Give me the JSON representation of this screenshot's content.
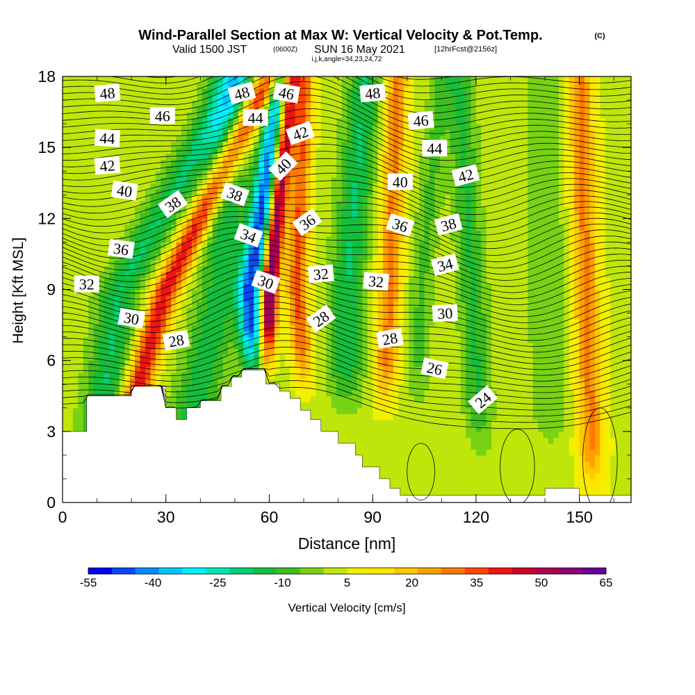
{
  "chart_data": {
    "type": "heatmap",
    "title": {
      "main": "Wind-Parallel Section at Max W: Vertical Velocity & Pot.Temp.",
      "main_tag": "(C)",
      "sub_a": "Valid 1500 JST",
      "sub_b": "(0600Z)",
      "sub_c": "SUN 16 May 2021",
      "sub_d": "[12hrFcst@2156z]",
      "sub_e": "i,j,k,angle=34,23,24,72"
    },
    "xlabel": "Distance [nm]",
    "ylabel": "Height [Kft MSL]",
    "xlim": [
      0,
      165
    ],
    "ylim": [
      0,
      18
    ],
    "x_ticks": [
      0,
      30,
      60,
      90,
      120,
      150
    ],
    "y_ticks": [
      0,
      3,
      6,
      9,
      12,
      15,
      18
    ],
    "colorbar": {
      "label": "Vertical Velocity [cm/s]",
      "tick_labels": [
        "-55",
        "-40",
        "-25",
        "-10",
        "5",
        "20",
        "35",
        "50",
        "65"
      ],
      "colors": [
        "#0000ee",
        "#0a46f5",
        "#008cff",
        "#00c8ff",
        "#00f0ff",
        "#00e6b4",
        "#00d278",
        "#14be3c",
        "#3cbe1e",
        "#78d214",
        "#bee60a",
        "#f0f000",
        "#ffe600",
        "#ffc800",
        "#ffa000",
        "#ff7800",
        "#ff4600",
        "#ee1414",
        "#cc0028",
        "#aa0050",
        "#8c0078",
        "#640096"
      ]
    },
    "bands": [
      {
        "name": "positive",
        "x": [
          12,
          30,
          60
        ],
        "t": 0.05,
        "w": 4,
        "amp": 40
      },
      {
        "name": "negative",
        "x": [
          8,
          16.5,
          51
        ],
        "t": 0.06,
        "w": 6,
        "amp": -20
      },
      {
        "name": "negative",
        "x": [
          32,
          46,
          49
        ],
        "t": 0.05,
        "w": 6.5,
        "amp": -18
      },
      {
        "name": "positive",
        "x": [
          58,
          60,
          66
        ],
        "t": 0.3,
        "w": 2.5,
        "amp": 60
      },
      {
        "name": "negative",
        "x": [
          56,
          54.5,
          64
        ],
        "t": 0.28,
        "w": 3.5,
        "amp": -50
      },
      {
        "name": "positive",
        "x": [
          73,
          68,
          70
        ],
        "t": 0.25,
        "w": 3,
        "amp": 30
      },
      {
        "name": "negative",
        "x": [
          82,
          82.5,
          88
        ],
        "t": 0.2,
        "w": 5,
        "amp": -20
      },
      {
        "name": "positive",
        "x": [
          92,
          95,
          97
        ],
        "t": 0.2,
        "w": 3.5,
        "amp": 25
      },
      {
        "name": "negative",
        "x": [
          102,
          104,
          110
        ],
        "t": 0.2,
        "w": 3.5,
        "amp": -10
      },
      {
        "name": "negative",
        "x": [
          122,
          119,
          115
        ],
        "t": 0.1,
        "w": 4,
        "amp": -15
      },
      {
        "name": "positive",
        "x": [
          154,
          152,
          150
        ],
        "t": 0.0,
        "w": 4,
        "amp": 25
      },
      {
        "name": "negative",
        "x": [
          142,
          141,
          140
        ],
        "t": 0.1,
        "w": 6,
        "amp": -8
      }
    ],
    "base_value": 3,
    "terrain": [
      [
        0,
        3.0
      ],
      [
        7,
        3.0
      ],
      [
        7,
        3.5
      ],
      [
        7,
        4.0
      ],
      [
        7,
        4.5
      ],
      [
        20,
        4.5
      ],
      [
        20,
        4.9
      ],
      [
        30,
        4.9
      ],
      [
        30,
        4.0
      ],
      [
        33,
        4.0
      ],
      [
        33,
        3.5
      ],
      [
        36,
        3.5
      ],
      [
        36,
        4.0
      ],
      [
        40,
        4.0
      ],
      [
        40,
        4.3
      ],
      [
        46,
        4.3
      ],
      [
        46,
        4.9
      ],
      [
        49,
        4.9
      ],
      [
        49,
        5.3
      ],
      [
        52,
        5.3
      ],
      [
        52,
        5.6
      ],
      [
        59,
        5.6
      ],
      [
        59,
        5.0
      ],
      [
        63,
        5.0
      ],
      [
        63,
        4.7
      ],
      [
        66,
        4.7
      ],
      [
        66,
        4.4
      ],
      [
        69,
        4.4
      ],
      [
        69,
        3.9
      ],
      [
        72,
        3.9
      ],
      [
        72,
        3.5
      ],
      [
        75,
        3.5
      ],
      [
        75,
        3.0
      ],
      [
        80,
        3.0
      ],
      [
        80,
        2.5
      ],
      [
        85,
        2.5
      ],
      [
        85,
        2.0
      ],
      [
        87,
        2.0
      ],
      [
        87,
        1.5
      ],
      [
        92,
        1.5
      ],
      [
        92,
        1.0
      ],
      [
        95,
        1.0
      ],
      [
        95,
        0.6
      ],
      [
        98,
        0.6
      ],
      [
        98,
        0.3
      ],
      [
        140,
        0.3
      ],
      [
        140,
        0.6
      ],
      [
        150,
        0.6
      ],
      [
        150,
        0.3
      ],
      [
        165,
        0.3
      ]
    ],
    "isentropes": [
      {
        "label": "24",
        "y": 0.1,
        "label_x": 122,
        "angle": -40
      },
      {
        "label": "26",
        "y": 0.2,
        "label_x": 108,
        "angle": 12
      },
      {
        "label": "28",
        "y": 0.3,
        "label_x": 33,
        "angle": -10
      },
      {
        "label": "28",
        "y": 0.3,
        "label_x": 75,
        "angle": -35
      },
      {
        "label": "28",
        "y": 0.3,
        "label_x": 95,
        "angle": -10
      },
      {
        "label": "30",
        "y": 0.35,
        "label_x": 20,
        "angle": 10
      },
      {
        "label": "30",
        "y": 0.35,
        "label_x": 59,
        "angle": 20
      },
      {
        "label": "30",
        "y": 0.35,
        "label_x": 111,
        "angle": -3
      },
      {
        "label": "32",
        "y": 0.4,
        "label_x": 7,
        "angle": 0
      },
      {
        "label": "32",
        "y": 0.4,
        "label_x": 75,
        "angle": -5
      },
      {
        "label": "32",
        "y": 0.4,
        "label_x": 91,
        "angle": 5
      },
      {
        "label": "34",
        "y": 0.45,
        "label_x": 54,
        "angle": 20
      },
      {
        "label": "34",
        "y": 0.45,
        "label_x": 111,
        "angle": -15
      },
      {
        "label": "36",
        "y": 0.5,
        "label_x": 17,
        "angle": 8
      },
      {
        "label": "36",
        "y": 0.5,
        "label_x": 71,
        "angle": -35
      },
      {
        "label": "36",
        "y": 0.5,
        "label_x": 98,
        "angle": 18
      },
      {
        "label": "38",
        "y": 0.55,
        "label_x": 32,
        "angle": -35
      },
      {
        "label": "38",
        "y": 0.55,
        "label_x": 50,
        "angle": 20
      },
      {
        "label": "38",
        "y": 0.55,
        "label_x": 112,
        "angle": -15
      },
      {
        "label": "40",
        "y": 0.6,
        "label_x": 18,
        "angle": 8
      },
      {
        "label": "40",
        "y": 0.6,
        "label_x": 64,
        "angle": -45
      },
      {
        "label": "40",
        "y": 0.6,
        "label_x": 98,
        "angle": 0
      },
      {
        "label": "42",
        "y": 0.65,
        "label_x": 13,
        "angle": -5
      },
      {
        "label": "42",
        "y": 0.65,
        "label_x": 69,
        "angle": -20
      },
      {
        "label": "42",
        "y": 0.65,
        "label_x": 117,
        "angle": -15
      },
      {
        "label": "44",
        "y": 0.7,
        "label_x": 13,
        "angle": 3
      },
      {
        "label": "44",
        "y": 0.7,
        "label_x": 56,
        "angle": 0
      },
      {
        "label": "44",
        "y": 0.7,
        "label_x": 108,
        "angle": 0
      },
      {
        "label": "46",
        "y": 0.75,
        "label_x": 29,
        "angle": 0
      },
      {
        "label": "46",
        "y": 0.75,
        "label_x": 65,
        "angle": 10
      },
      {
        "label": "46",
        "y": 0.75,
        "label_x": 104,
        "angle": -5
      },
      {
        "label": "48",
        "y": 0.8,
        "label_x": 13,
        "angle": -5
      },
      {
        "label": "48",
        "y": 0.8,
        "label_x": 52,
        "angle": -15
      },
      {
        "label": "48",
        "y": 0.8,
        "label_x": 90,
        "angle": -5
      }
    ]
  }
}
